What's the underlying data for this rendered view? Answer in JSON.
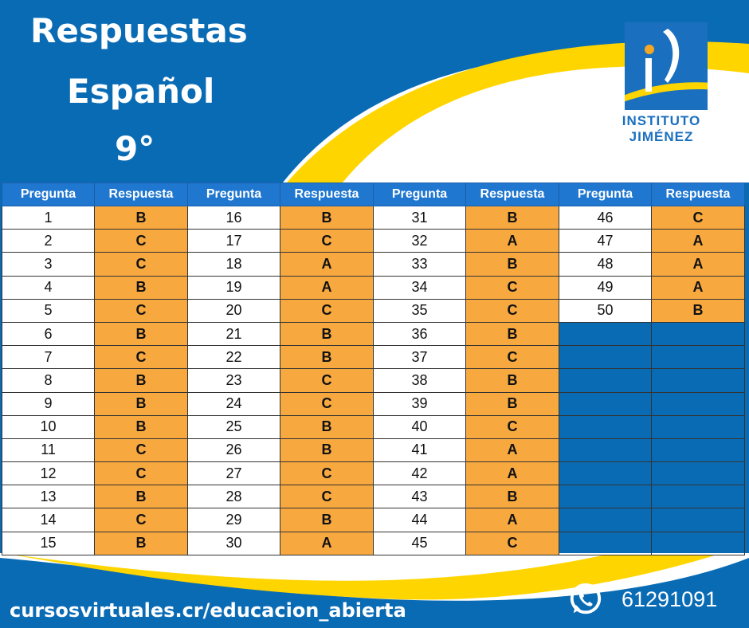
{
  "title": {
    "line1": "Respuestas",
    "line2": "Español",
    "line3": "9°"
  },
  "logo": {
    "line1": "INSTITUTO",
    "line2": "JIMÉNEZ",
    "colors": {
      "blue": "#1a6fbf",
      "orange": "#f5a623",
      "yellow": "#ffd500"
    }
  },
  "table": {
    "headers": [
      "Pregunta",
      "Respuesta",
      "Pregunta",
      "Respuesta",
      "Pregunta",
      "Respuesta",
      "Pregunta",
      "Respuesta"
    ],
    "columns": [
      [
        [
          "1",
          "B"
        ],
        [
          "2",
          "C"
        ],
        [
          "3",
          "C"
        ],
        [
          "4",
          "B"
        ],
        [
          "5",
          "C"
        ],
        [
          "6",
          "B"
        ],
        [
          "7",
          "C"
        ],
        [
          "8",
          "B"
        ],
        [
          "9",
          "B"
        ],
        [
          "10",
          "B"
        ],
        [
          "11",
          "C"
        ],
        [
          "12",
          "C"
        ],
        [
          "13",
          "B"
        ],
        [
          "14",
          "C"
        ],
        [
          "15",
          "B"
        ]
      ],
      [
        [
          "16",
          "B"
        ],
        [
          "17",
          "C"
        ],
        [
          "18",
          "A"
        ],
        [
          "19",
          "A"
        ],
        [
          "20",
          "C"
        ],
        [
          "21",
          "B"
        ],
        [
          "22",
          "B"
        ],
        [
          "23",
          "C"
        ],
        [
          "24",
          "C"
        ],
        [
          "25",
          "B"
        ],
        [
          "26",
          "B"
        ],
        [
          "27",
          "C"
        ],
        [
          "28",
          "C"
        ],
        [
          "29",
          "B"
        ],
        [
          "30",
          "A"
        ]
      ],
      [
        [
          "31",
          "B"
        ],
        [
          "32",
          "A"
        ],
        [
          "33",
          "B"
        ],
        [
          "34",
          "C"
        ],
        [
          "35",
          "C"
        ],
        [
          "36",
          "B"
        ],
        [
          "37",
          "C"
        ],
        [
          "38",
          "B"
        ],
        [
          "39",
          "B"
        ],
        [
          "40",
          "C"
        ],
        [
          "41",
          "A"
        ],
        [
          "42",
          "A"
        ],
        [
          "43",
          "B"
        ],
        [
          "44",
          "A"
        ],
        [
          "45",
          "C"
        ]
      ],
      [
        [
          "46",
          "C"
        ],
        [
          "47",
          "A"
        ],
        [
          "48",
          "A"
        ],
        [
          "49",
          "A"
        ],
        [
          "50",
          "B"
        ]
      ]
    ],
    "colors": {
      "header": "#1f77d0",
      "answer": "#f7a940"
    }
  },
  "footer": {
    "url": "cursosvirtuales.cr/educacion_abierta",
    "phone": "61291091",
    "phone_icon": "whatsapp-icon"
  },
  "colors": {
    "background": "#0a6bb5",
    "swoosh": "#ffd500"
  }
}
